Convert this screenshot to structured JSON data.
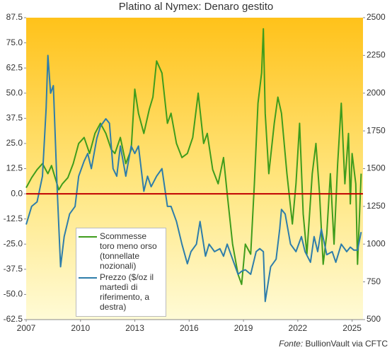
{
  "chart_data": {
    "type": "line",
    "title": "Platino al Nymex: Denaro gestito",
    "source_label": "Fonte:",
    "source": "BullionVault via CFTC",
    "xlim": [
      2007,
      2025.6
    ],
    "xticks": [
      2007,
      2010,
      2013,
      2016,
      2019,
      2022,
      2025
    ],
    "ylim": [
      -62.5,
      87.5
    ],
    "yticks": [
      87.5,
      {
        "value": 75,
        "label": "75.0"
      },
      62.5,
      {
        "value": 50,
        "label": "50.0"
      },
      37.5,
      {
        "value": 25,
        "label": "25.0"
      },
      12.5,
      {
        "value": 0,
        "label": "0.0"
      },
      -12.5,
      {
        "value": -25,
        "label": "-25.0"
      },
      -37.5,
      {
        "value": -50,
        "label": "-50.0"
      },
      -62.5
    ],
    "y2lim": [
      500,
      2500
    ],
    "y2ticks": [
      2500,
      2250,
      2000,
      1750,
      1500,
      1250,
      1000,
      750,
      500
    ],
    "grid": false,
    "reference_line": {
      "value": 0,
      "color": "#c00000"
    },
    "series": [
      {
        "name": "Scommesse toro meno orso (tonnellate nozionali)",
        "color": "#3f9c1c",
        "axis": "y",
        "x": [
          2007.0,
          2007.3,
          2007.6,
          2007.9,
          2008.2,
          2008.4,
          2008.6,
          2008.8,
          2009.0,
          2009.3,
          2009.6,
          2009.9,
          2010.2,
          2010.5,
          2010.8,
          2011.1,
          2011.4,
          2011.7,
          2011.9,
          2012.2,
          2012.5,
          2012.8,
          2013.0,
          2013.2,
          2013.5,
          2013.8,
          2014.0,
          2014.2,
          2014.5,
          2014.8,
          2015.0,
          2015.3,
          2015.6,
          2015.9,
          2016.2,
          2016.5,
          2016.8,
          2017.0,
          2017.3,
          2017.6,
          2017.9,
          2018.1,
          2018.4,
          2018.7,
          2018.9,
          2019.1,
          2019.4,
          2019.6,
          2019.8,
          2020.0,
          2020.1,
          2020.2,
          2020.4,
          2020.7,
          2020.9,
          2021.1,
          2021.4,
          2021.7,
          2021.9,
          2022.1,
          2022.3,
          2022.5,
          2022.8,
          2023.0,
          2023.2,
          2023.4,
          2023.6,
          2023.8,
          2024.0,
          2024.2,
          2024.4,
          2024.6,
          2024.8,
          2024.9,
          2025.0,
          2025.2,
          2025.3,
          2025.5
        ],
        "values": [
          3,
          8,
          12,
          15,
          10,
          14,
          8,
          2,
          5,
          8,
          15,
          25,
          28,
          20,
          30,
          35,
          30,
          22,
          20,
          28,
          15,
          22,
          52,
          40,
          30,
          42,
          48,
          66,
          60,
          35,
          40,
          25,
          18,
          20,
          28,
          50,
          25,
          30,
          12,
          5,
          18,
          0,
          -25,
          -40,
          -45,
          -25,
          -30,
          5,
          45,
          60,
          82,
          40,
          10,
          35,
          48,
          40,
          10,
          -15,
          5,
          35,
          -10,
          -30,
          10,
          25,
          0,
          -35,
          -20,
          10,
          -25,
          15,
          45,
          5,
          30,
          -5,
          20,
          5,
          -35,
          10
        ]
      },
      {
        "name": "Prezzo ($/oz il martedì di riferimento, a destra)",
        "color": "#2e7daa",
        "axis": "y2",
        "x": [
          2007.0,
          2007.3,
          2007.6,
          2007.9,
          2008.1,
          2008.2,
          2008.35,
          2008.5,
          2008.7,
          2008.9,
          2009.1,
          2009.4,
          2009.7,
          2009.9,
          2010.2,
          2010.4,
          2010.6,
          2010.9,
          2011.1,
          2011.4,
          2011.6,
          2011.8,
          2012.0,
          2012.2,
          2012.5,
          2012.8,
          2013.0,
          2013.2,
          2013.5,
          2013.7,
          2013.9,
          2014.2,
          2014.5,
          2014.8,
          2015.0,
          2015.3,
          2015.6,
          2015.9,
          2016.1,
          2016.4,
          2016.6,
          2016.9,
          2017.1,
          2017.4,
          2017.7,
          2017.9,
          2018.1,
          2018.4,
          2018.7,
          2018.9,
          2019.1,
          2019.4,
          2019.7,
          2019.9,
          2020.1,
          2020.2,
          2020.5,
          2020.8,
          2021.0,
          2021.1,
          2021.3,
          2021.6,
          2021.9,
          2022.2,
          2022.4,
          2022.7,
          2022.9,
          2023.1,
          2023.3,
          2023.6,
          2023.9,
          2024.1,
          2024.4,
          2024.7,
          2024.9,
          2025.1,
          2025.3,
          2025.5
        ],
        "values": [
          1130,
          1250,
          1280,
          1450,
          1900,
          2250,
          2000,
          2050,
          1400,
          850,
          1050,
          1200,
          1250,
          1450,
          1550,
          1600,
          1500,
          1700,
          1780,
          1830,
          1800,
          1500,
          1450,
          1650,
          1450,
          1650,
          1600,
          1650,
          1350,
          1450,
          1380,
          1450,
          1500,
          1250,
          1250,
          1150,
          1000,
          870,
          950,
          1000,
          1150,
          920,
          1000,
          950,
          970,
          920,
          1000,
          900,
          800,
          820,
          830,
          800,
          950,
          970,
          950,
          620,
          850,
          900,
          1100,
          1230,
          1200,
          1000,
          950,
          1050,
          950,
          880,
          1050,
          950,
          1100,
          930,
          950,
          880,
          1000,
          950,
          980,
          960,
          960,
          1080
        ]
      }
    ]
  }
}
